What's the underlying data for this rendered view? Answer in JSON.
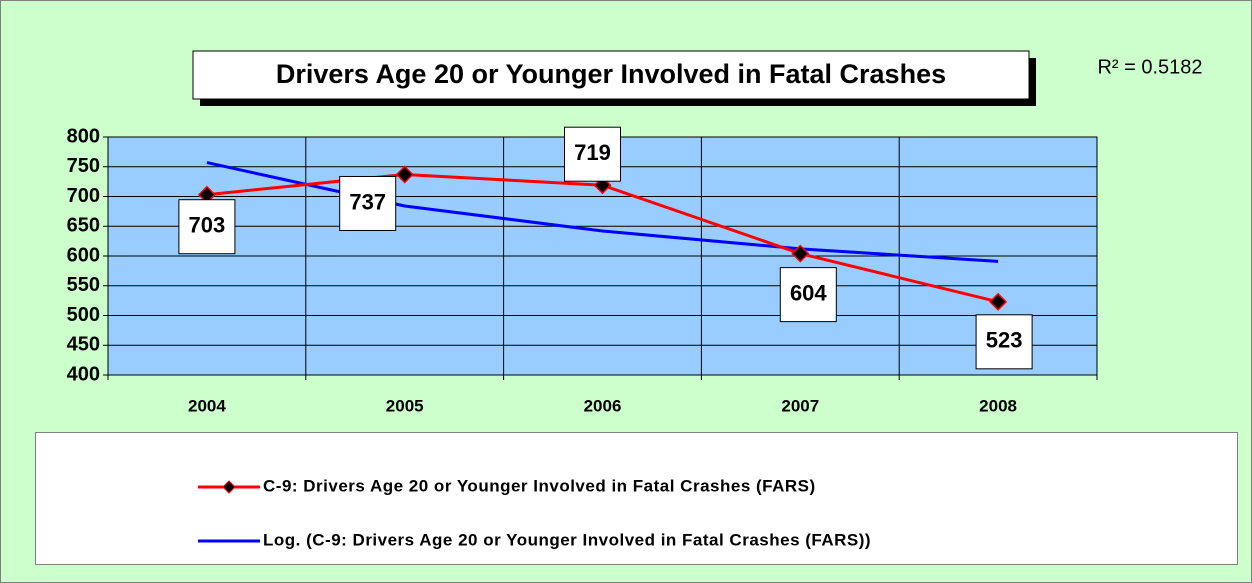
{
  "chart_data": {
    "type": "line",
    "title": "Drivers Age 20 or Younger Involved in Fatal Crashes",
    "annotation": "R² = 0.5182",
    "categories": [
      "2004",
      "2005",
      "2006",
      "2007",
      "2008"
    ],
    "series": [
      {
        "name": "C-9: Drivers Age 20 or Younger Involved in Fatal Crashes (FARS)",
        "color": "#ff0000",
        "values": [
          703,
          737,
          719,
          604,
          523
        ]
      },
      {
        "name": "Log. (C-9: Drivers Age 20 or Younger Involved in Fatal Crashes (FARS))",
        "color": "#0000ff",
        "values": [
          757,
          684,
          642,
          612,
          591
        ]
      }
    ],
    "ylim": [
      400,
      800
    ],
    "yticks": [
      400,
      450,
      500,
      550,
      600,
      650,
      700,
      750,
      800
    ],
    "grid": true,
    "legend": "bottom"
  }
}
